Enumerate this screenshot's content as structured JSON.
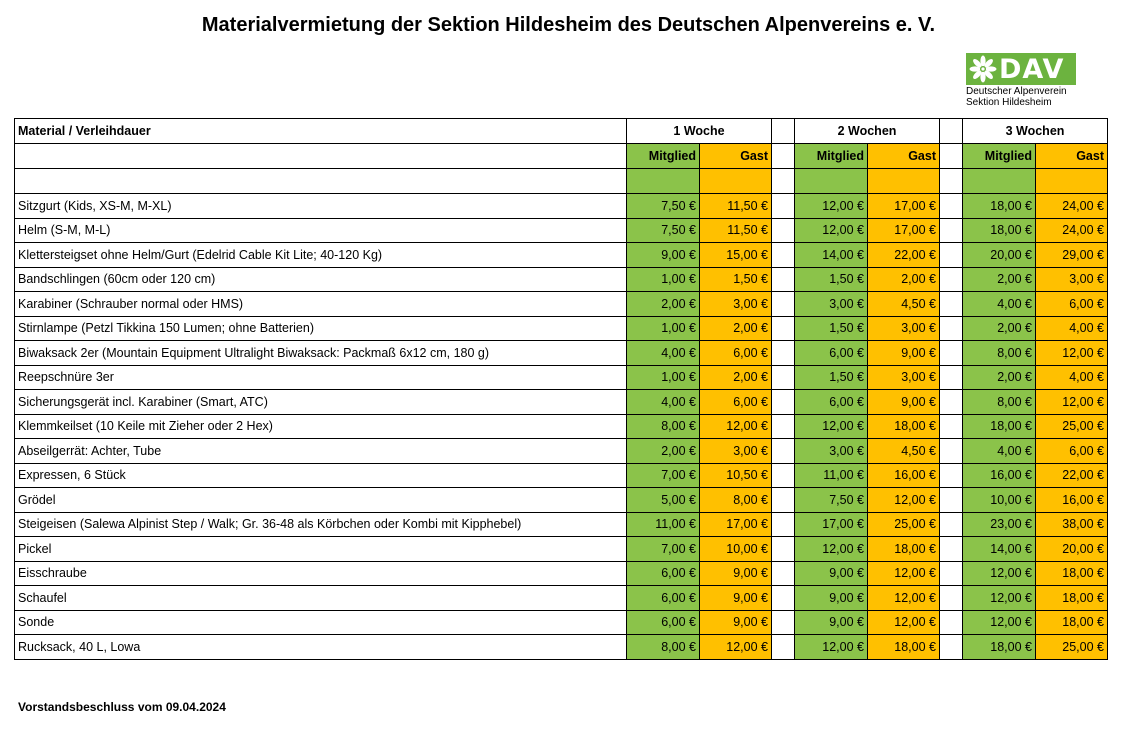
{
  "title": "Materialvermietung der Sektion Hildesheim des Deutschen Alpenvereins e. V.",
  "logo": {
    "wordmark": "DAV",
    "line1": "Deutscher Alpenverein",
    "line2": "Sektion Hildesheim",
    "brand_color": "#6cb33f",
    "icon": "edelweiss-icon"
  },
  "colors": {
    "mitglied": "#8bc34a",
    "gast": "#ffc000"
  },
  "table": {
    "corner_label": "Material / Verleihdauer",
    "periods": [
      "1 Woche",
      "2 Wochen",
      "3 Wochen"
    ],
    "member_label": "Mitglied",
    "guest_label": "Gast",
    "rows": [
      {
        "material": "Sitzgurt (Kids, XS-M, M-XL)",
        "prices": [
          "7,50 €",
          "11,50 €",
          "12,00 €",
          "17,00 €",
          "18,00 €",
          "24,00 €"
        ]
      },
      {
        "material": "Helm (S-M, M-L)",
        "prices": [
          "7,50 €",
          "11,50 €",
          "12,00 €",
          "17,00 €",
          "18,00 €",
          "24,00 €"
        ]
      },
      {
        "material": "Klettersteigset ohne Helm/Gurt (Edelrid Cable Kit Lite; 40-120 Kg)",
        "prices": [
          "9,00 €",
          "15,00 €",
          "14,00 €",
          "22,00 €",
          "20,00 €",
          "29,00 €"
        ]
      },
      {
        "material": "Bandschlingen (60cm oder 120 cm)",
        "prices": [
          "1,00 €",
          "1,50 €",
          "1,50 €",
          "2,00 €",
          "2,00 €",
          "3,00 €"
        ]
      },
      {
        "material": "Karabiner (Schrauber normal oder HMS)",
        "prices": [
          "2,00 €",
          "3,00 €",
          "3,00 €",
          "4,50 €",
          "4,00 €",
          "6,00 €"
        ]
      },
      {
        "material": "Stirnlampe (Petzl Tikkina 150 Lumen; ohne Batterien)",
        "prices": [
          "1,00 €",
          "2,00 €",
          "1,50 €",
          "3,00 €",
          "2,00 €",
          "4,00 €"
        ]
      },
      {
        "material": "Biwaksack 2er (Mountain Equipment Ultralight Biwaksack: Packmaß 6x12 cm, 180 g)",
        "prices": [
          "4,00 €",
          "6,00 €",
          "6,00 €",
          "9,00 €",
          "8,00 €",
          "12,00 €"
        ]
      },
      {
        "material": "Reepschnüre 3er",
        "prices": [
          "1,00 €",
          "2,00 €",
          "1,50 €",
          "3,00 €",
          "2,00 €",
          "4,00 €"
        ]
      },
      {
        "material": "Sicherungsgerät incl. Karabiner (Smart, ATC)",
        "prices": [
          "4,00 €",
          "6,00 €",
          "6,00 €",
          "9,00 €",
          "8,00 €",
          "12,00 €"
        ]
      },
      {
        "material": "Klemmkeilset (10 Keile mit Zieher oder 2 Hex)",
        "prices": [
          "8,00 €",
          "12,00 €",
          "12,00 €",
          "18,00 €",
          "18,00 €",
          "25,00 €"
        ]
      },
      {
        "material": "Abseilgerrät: Achter, Tube",
        "prices": [
          "2,00 €",
          "3,00 €",
          "3,00 €",
          "4,50 €",
          "4,00 €",
          "6,00 €"
        ]
      },
      {
        "material": "Expressen, 6 Stück",
        "prices": [
          "7,00 €",
          "10,50 €",
          "11,00 €",
          "16,00 €",
          "16,00 €",
          "22,00 €"
        ]
      },
      {
        "material": "Grödel",
        "prices": [
          "5,00 €",
          "8,00 €",
          "7,50 €",
          "12,00 €",
          "10,00 €",
          "16,00 €"
        ]
      },
      {
        "material": "Steigeisen (Salewa Alpinist Step / Walk; Gr. 36-48 als Körbchen oder Kombi mit Kipphebel)",
        "prices": [
          "11,00 €",
          "17,00 €",
          "17,00 €",
          "25,00 €",
          "23,00 €",
          "38,00 €"
        ]
      },
      {
        "material": "Pickel",
        "prices": [
          "7,00 €",
          "10,00 €",
          "12,00 €",
          "18,00 €",
          "14,00 €",
          "20,00 €"
        ]
      },
      {
        "material": "Eisschraube",
        "prices": [
          "6,00 €",
          "9,00 €",
          "9,00 €",
          "12,00 €",
          "12,00 €",
          "18,00 €"
        ]
      },
      {
        "material": "Schaufel",
        "prices": [
          "6,00 €",
          "9,00 €",
          "9,00 €",
          "12,00 €",
          "12,00 €",
          "18,00 €"
        ]
      },
      {
        "material": "Sonde",
        "prices": [
          "6,00 €",
          "9,00 €",
          "9,00 €",
          "12,00 €",
          "12,00 €",
          "18,00 €"
        ]
      },
      {
        "material": "Rucksack, 40 L, Lowa",
        "prices": [
          "8,00 €",
          "12,00 €",
          "12,00 €",
          "18,00 €",
          "18,00 €",
          "25,00 €"
        ]
      }
    ]
  },
  "footer": "Vorstandsbeschluss vom 09.04.2024"
}
